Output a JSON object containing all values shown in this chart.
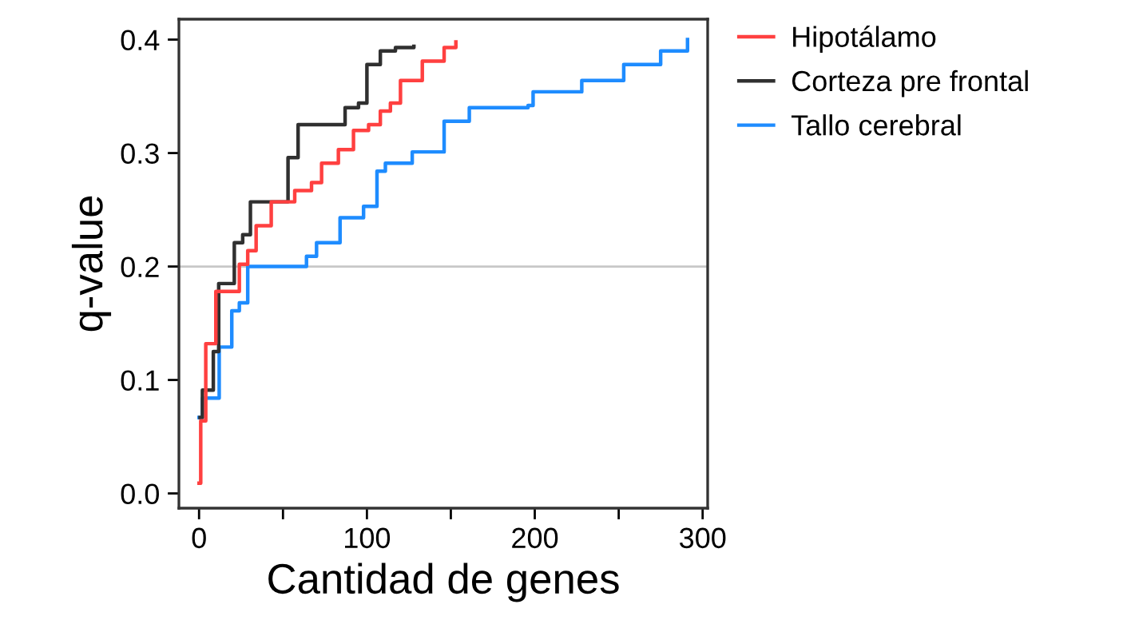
{
  "chart_data": {
    "type": "step",
    "xlabel": "Cantidad de genes",
    "ylabel": "q-value",
    "xlim": [
      -12,
      303
    ],
    "ylim": [
      -0.013,
      0.418
    ],
    "xticks": [
      0,
      {
        "value": 50,
        "label": null
      },
      100,
      {
        "value": 150,
        "label": null
      },
      200,
      {
        "value": 250,
        "label": null
      },
      300
    ],
    "yticks": [
      {
        "value": 0,
        "label": "0.0"
      },
      0.1,
      0.2,
      0.3,
      0.4
    ],
    "grid": false,
    "legend": "top right",
    "ref_lines": [
      {
        "axis": "y",
        "value": 0.2,
        "color": "#c8c8c8"
      }
    ],
    "series": [
      {
        "name": "Hipotálamo",
        "color": "#ff4040",
        "x": [
          0,
          1,
          4,
          8.5,
          10,
          20,
          24,
          29,
          34,
          43,
          57,
          67,
          73,
          83,
          92,
          101,
          108,
          114,
          120,
          128,
          133,
          146,
          153
        ],
        "values": [
          0.009,
          0.064,
          0.132,
          0.132,
          0.178,
          0.178,
          0.202,
          0.214,
          0.236,
          0.257,
          0.267,
          0.274,
          0.291,
          0.303,
          0.32,
          0.325,
          0.337,
          0.344,
          0.364,
          0.364,
          0.381,
          0.393,
          0.398
        ]
      },
      {
        "name": "Corteza pre frontal",
        "color": "#303030",
        "x": [
          0.6,
          2,
          8.5,
          11.7,
          18,
          21,
          26,
          30.6,
          46,
          53,
          59,
          83,
          87,
          95,
          100,
          108,
          117,
          128
        ],
        "values": [
          0.067,
          0.091,
          0.125,
          0.185,
          0.185,
          0.221,
          0.228,
          0.257,
          0.257,
          0.296,
          0.325,
          0.325,
          0.34,
          0.344,
          0.378,
          0.39,
          0.393,
          0.394
        ]
      },
      {
        "name": "Tallo cerebral",
        "color": "#1e8cff",
        "x": [
          0,
          2,
          8.5,
          12,
          19.5,
          24,
          29,
          51,
          64,
          70,
          84,
          98,
          106,
          111,
          127,
          146,
          161,
          196,
          199,
          228,
          247,
          253,
          275,
          291
        ],
        "values": [
          0.067,
          0.084,
          0.084,
          0.129,
          0.161,
          0.168,
          0.2,
          0.2,
          0.209,
          0.221,
          0.243,
          0.253,
          0.284,
          0.291,
          0.301,
          0.328,
          0.34,
          0.342,
          0.354,
          0.364,
          0.364,
          0.378,
          0.39,
          0.4
        ]
      }
    ]
  }
}
